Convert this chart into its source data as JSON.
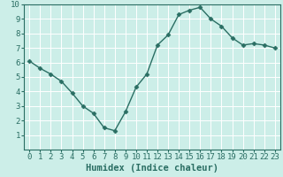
{
  "x": [
    0,
    1,
    2,
    3,
    4,
    5,
    6,
    7,
    8,
    9,
    10,
    11,
    12,
    13,
    14,
    15,
    16,
    17,
    18,
    19,
    20,
    21,
    22,
    23
  ],
  "y": [
    6.1,
    5.6,
    5.2,
    4.7,
    3.9,
    3.0,
    2.5,
    1.5,
    1.3,
    2.6,
    4.3,
    5.2,
    7.2,
    7.9,
    9.3,
    9.6,
    9.8,
    9.0,
    8.5,
    7.7,
    7.2,
    7.3,
    7.2,
    7.0
  ],
  "line_color": "#2a6e63",
  "marker": "D",
  "marker_size": 2.5,
  "bg_color": "#cceee8",
  "grid_color": "#ffffff",
  "xlabel": "Humidex (Indice chaleur)",
  "xlabel_fontsize": 7.5,
  "xlim": [
    -0.5,
    23.5
  ],
  "ylim": [
    0,
    10
  ],
  "xtick_labels": [
    "0",
    "1",
    "2",
    "3",
    "4",
    "5",
    "6",
    "7",
    "8",
    "9",
    "10",
    "11",
    "12",
    "13",
    "14",
    "15",
    "16",
    "17",
    "18",
    "19",
    "20",
    "21",
    "22",
    "23"
  ],
  "ytick_values": [
    1,
    2,
    3,
    4,
    5,
    6,
    7,
    8,
    9,
    10
  ],
  "tick_fontsize": 6.5,
  "line_width": 1.0,
  "spine_color": "#2a6e63"
}
